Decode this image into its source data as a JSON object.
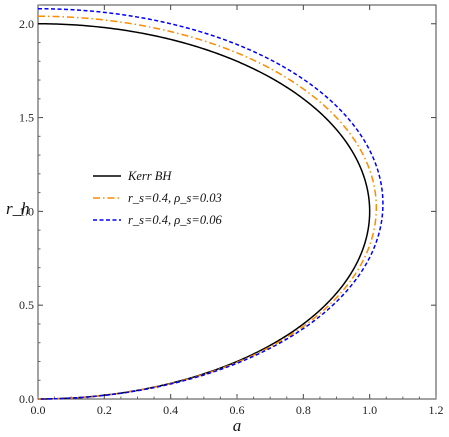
{
  "chart_data": {
    "type": "line",
    "xlabel": "a",
    "ylabel": "r_h",
    "xlim": [
      0,
      1.2
    ],
    "ylim": [
      0,
      2.1
    ],
    "xticks": [
      "0.0",
      "0.2",
      "0.4",
      "0.6",
      "0.8",
      "1.0",
      "1.2"
    ],
    "yticks": [
      "0.0",
      "0.5",
      "1.0",
      "1.5",
      "2.0"
    ],
    "grid": false,
    "legend_position": "center-left",
    "series": [
      {
        "name": "Kerr BH",
        "r_scale": 1.0,
        "a_max": 1.0,
        "color": "#000000",
        "style": "solid"
      },
      {
        "name": "r_s=0.4,  ρ_s=0.03",
        "r_scale": 1.02,
        "a_max": 1.02,
        "color": "#ff8c00",
        "style": "dashdot"
      },
      {
        "name": "r_s=0.4, ρ_s=0.06",
        "r_scale": 1.04,
        "a_max": 1.04,
        "color": "#0000ff",
        "style": "dashed"
      }
    ]
  }
}
